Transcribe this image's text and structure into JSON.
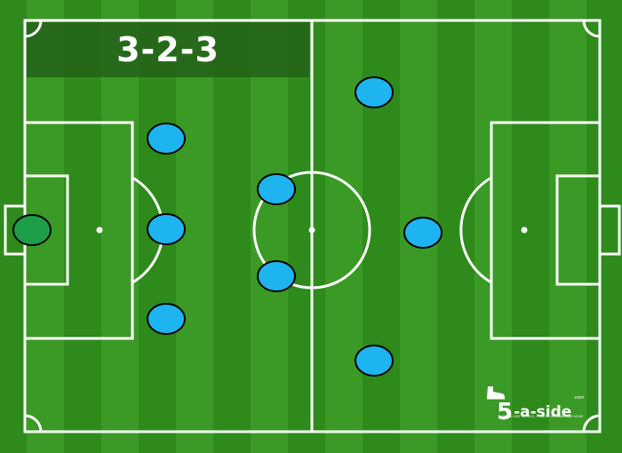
{
  "formation": {
    "title": "3-2-3"
  },
  "colors": {
    "pitch_dark": "#2f8a1c",
    "pitch_light": "#3a9a25",
    "lines": "#ffffff",
    "title_panel": "#25621a",
    "outfield_player": "#1eb4f0",
    "goalkeeper": "#1f9e4a",
    "player_outline": "#000000"
  },
  "players": [
    {
      "role": "goalkeeper",
      "icon": "goalkeeper-marker"
    },
    {
      "role": "defender",
      "icon": "player-marker"
    },
    {
      "role": "defender",
      "icon": "player-marker"
    },
    {
      "role": "defender",
      "icon": "player-marker"
    },
    {
      "role": "midfielder",
      "icon": "player-marker"
    },
    {
      "role": "midfielder",
      "icon": "player-marker"
    },
    {
      "role": "forward",
      "icon": "player-marker"
    },
    {
      "role": "forward",
      "icon": "player-marker"
    },
    {
      "role": "forward",
      "icon": "player-marker"
    }
  ],
  "logo": {
    "number": "5",
    "text": "-a-side",
    "tld": ".com",
    "tagline": "FIVE-A-SIDE TACTICS, FITNESS, REVIEWS AND MORE",
    "icon": "boot-icon"
  }
}
